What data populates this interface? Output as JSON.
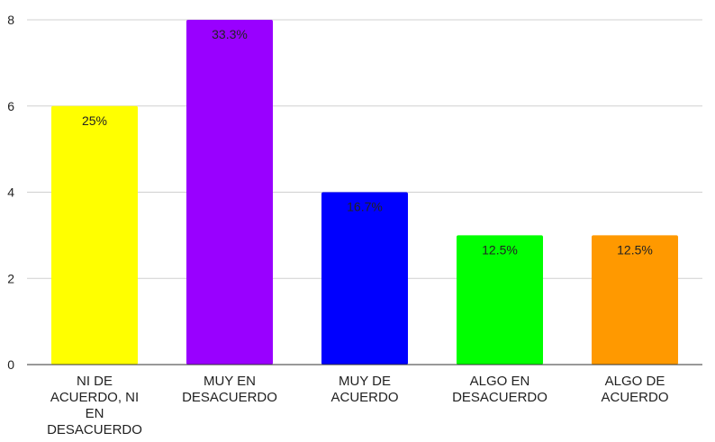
{
  "chart_data": {
    "type": "bar",
    "categories": [
      [
        "NI DE",
        "ACUERDO, NI",
        "EN",
        "DESACUERDO"
      ],
      [
        "MUY EN",
        "DESACUERDO"
      ],
      [
        "MUY DE",
        "ACUERDO"
      ],
      [
        "ALGO EN",
        "DESACUERDO"
      ],
      [
        "ALGO DE",
        "ACUERDO"
      ]
    ],
    "values": [
      6,
      8,
      4,
      3,
      3
    ],
    "data_labels": [
      "25%",
      "33.3%",
      "16.7%",
      "12.5%",
      "12.5%"
    ],
    "colors": [
      "#ffff00",
      "#9900ff",
      "#0000ff",
      "#00ff00",
      "#ff9900"
    ],
    "yticks": [
      "0",
      "2",
      "4",
      "6",
      "8"
    ],
    "ylim": [
      0,
      8
    ],
    "grid": true
  }
}
